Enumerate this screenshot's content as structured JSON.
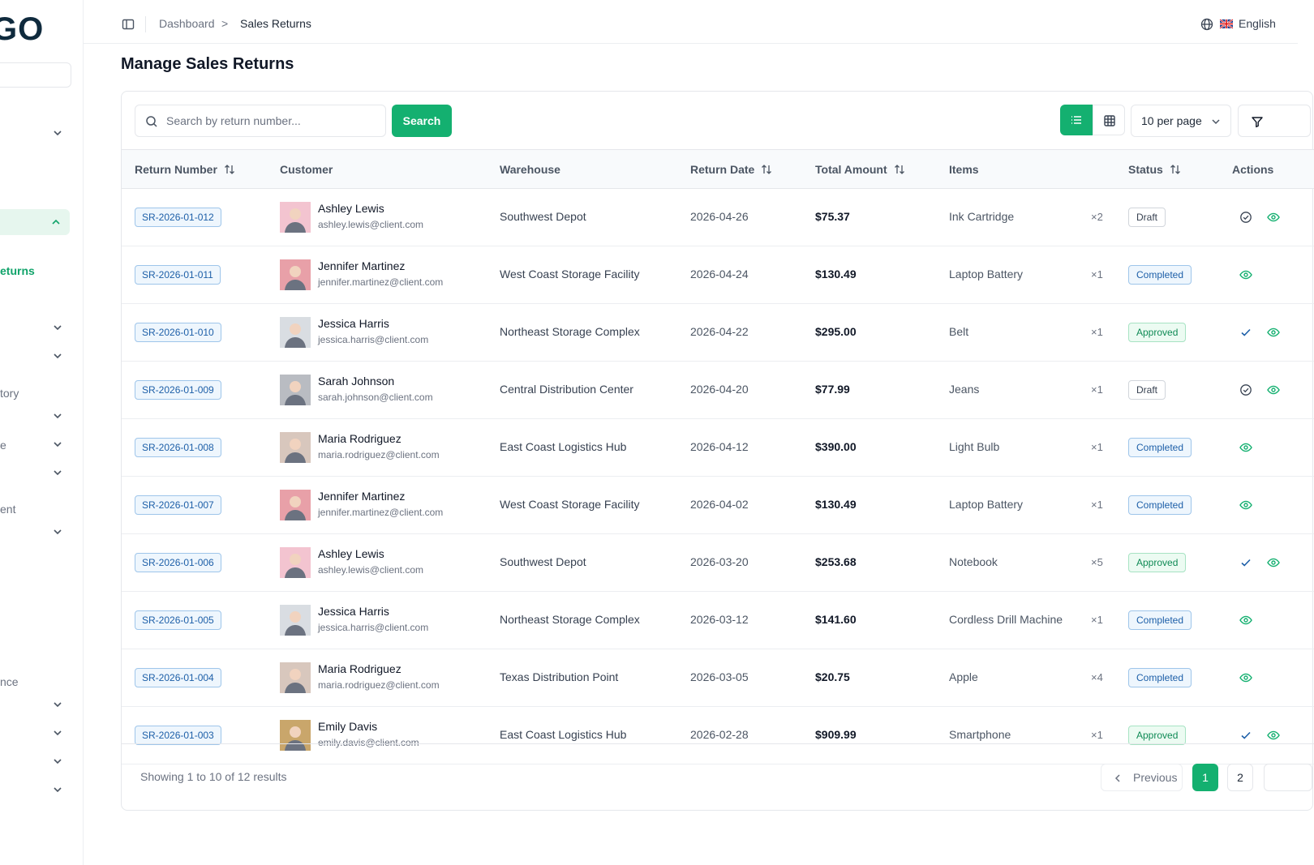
{
  "brand": {
    "logo_text": "GO"
  },
  "sidebar": {
    "active_link": "eturns",
    "sections": [
      "tory",
      "e",
      "ent",
      "nce"
    ]
  },
  "topbar": {
    "breadcrumb": [
      "Dashboard",
      "Sales Returns"
    ],
    "separator": ">",
    "language": "English"
  },
  "page": {
    "title": "Manage Sales Returns"
  },
  "toolbar": {
    "search_placeholder": "Search by return number...",
    "search_button": "Search",
    "per_page": "10 per page"
  },
  "table": {
    "columns": [
      "Return Number",
      "Customer",
      "Warehouse",
      "Return Date",
      "Total Amount",
      "Items",
      "Status",
      "Actions"
    ],
    "rows": [
      {
        "return_number": "SR-2026-01-012",
        "customer": "Ashley Lewis",
        "email": "ashley.lewis@client.com",
        "warehouse": "Southwest Depot",
        "date": "2026-04-26",
        "amount": "$75.37",
        "item": "Ink Cartridge",
        "qty": "×2",
        "status": "Draft",
        "status_type": "draft",
        "avatar_color": "#f3c4d0"
      },
      {
        "return_number": "SR-2026-01-011",
        "customer": "Jennifer Martinez",
        "email": "jennifer.martinez@client.com",
        "warehouse": "West Coast Storage Facility",
        "date": "2026-04-24",
        "amount": "$130.49",
        "item": "Laptop Battery",
        "qty": "×1",
        "status": "Completed",
        "status_type": "completed",
        "avatar_color": "#e8a0a8"
      },
      {
        "return_number": "SR-2026-01-010",
        "customer": "Jessica Harris",
        "email": "jessica.harris@client.com",
        "warehouse": "Northeast Storage Complex",
        "date": "2026-04-22",
        "amount": "$295.00",
        "item": "Belt",
        "qty": "×1",
        "status": "Approved",
        "status_type": "approved",
        "avatar_color": "#d9dde2"
      },
      {
        "return_number": "SR-2026-01-009",
        "customer": "Sarah Johnson",
        "email": "sarah.johnson@client.com",
        "warehouse": "Central Distribution Center",
        "date": "2026-04-20",
        "amount": "$77.99",
        "item": "Jeans",
        "qty": "×1",
        "status": "Draft",
        "status_type": "draft",
        "avatar_color": "#b9bcc2"
      },
      {
        "return_number": "SR-2026-01-008",
        "customer": "Maria Rodriguez",
        "email": "maria.rodriguez@client.com",
        "warehouse": "East Coast Logistics Hub",
        "date": "2026-04-12",
        "amount": "$390.00",
        "item": "Light Bulb",
        "qty": "×1",
        "status": "Completed",
        "status_type": "completed",
        "avatar_color": "#d8c7bd"
      },
      {
        "return_number": "SR-2026-01-007",
        "customer": "Jennifer Martinez",
        "email": "jennifer.martinez@client.com",
        "warehouse": "West Coast Storage Facility",
        "date": "2026-04-02",
        "amount": "$130.49",
        "item": "Laptop Battery",
        "qty": "×1",
        "status": "Completed",
        "status_type": "completed",
        "avatar_color": "#e8a0a8"
      },
      {
        "return_number": "SR-2026-01-006",
        "customer": "Ashley Lewis",
        "email": "ashley.lewis@client.com",
        "warehouse": "Southwest Depot",
        "date": "2026-03-20",
        "amount": "$253.68",
        "item": "Notebook",
        "qty": "×5",
        "status": "Approved",
        "status_type": "approved",
        "avatar_color": "#f3c4d0"
      },
      {
        "return_number": "SR-2026-01-005",
        "customer": "Jessica Harris",
        "email": "jessica.harris@client.com",
        "warehouse": "Northeast Storage Complex",
        "date": "2026-03-12",
        "amount": "$141.60",
        "item": "Cordless Drill Machine",
        "qty": "×1",
        "status": "Completed",
        "status_type": "completed",
        "avatar_color": "#d9dde2"
      },
      {
        "return_number": "SR-2026-01-004",
        "customer": "Maria Rodriguez",
        "email": "maria.rodriguez@client.com",
        "warehouse": "Texas Distribution Point",
        "date": "2026-03-05",
        "amount": "$20.75",
        "item": "Apple",
        "qty": "×4",
        "status": "Completed",
        "status_type": "completed",
        "avatar_color": "#d8c7bd"
      },
      {
        "return_number": "SR-2026-01-003",
        "customer": "Emily Davis",
        "email": "emily.davis@client.com",
        "warehouse": "East Coast Logistics Hub",
        "date": "2026-02-28",
        "amount": "$909.99",
        "item": "Smartphone",
        "qty": "×1",
        "status": "Approved",
        "status_type": "approved",
        "avatar_color": "#c9a66b"
      }
    ]
  },
  "footer": {
    "showing": "Showing 1 to 10 of 12 results",
    "previous": "Previous",
    "pages": [
      "1",
      "2"
    ]
  },
  "colors": {
    "accent": "#14b070",
    "completed": "#1d5fa8",
    "approved": "#0f8a55"
  }
}
